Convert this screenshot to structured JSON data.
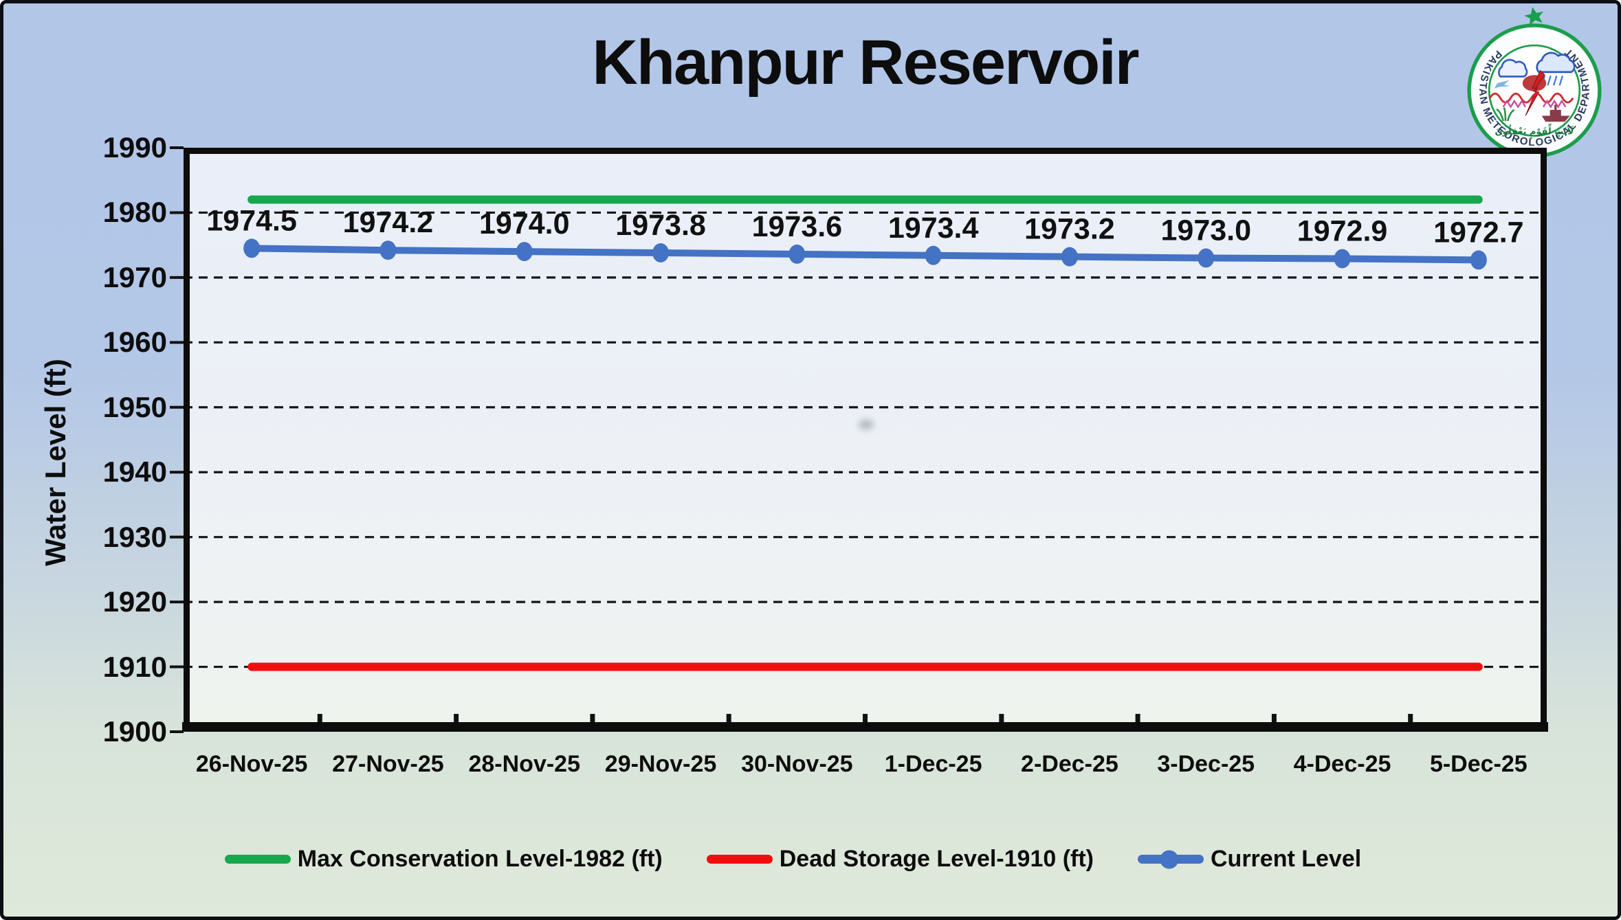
{
  "title": "Khanpur Reservoir",
  "logo": {
    "organization": "Pakistan Meteorological Department",
    "ring_text": "PAKISTAN METEOROLOGICAL DEPARTMENT",
    "arabic_text": "لَآيَٰتٍ لِّقَوْمٍ يَعْقِلُونَ"
  },
  "y_axis": {
    "label": "Water Level (ft)",
    "ticks": [
      "1990",
      "1980",
      "1970",
      "1960",
      "1950",
      "1940",
      "1930",
      "1920",
      "1910",
      "1900"
    ]
  },
  "chart_data": {
    "type": "line",
    "title": "Khanpur Reservoir",
    "ylabel": "Water Level (ft)",
    "ylim": [
      1900,
      1990
    ],
    "y_tick_step": 10,
    "grid": "horizontal-dashed",
    "legend_position": "bottom",
    "categories": [
      "26-Nov-25",
      "27-Nov-25",
      "28-Nov-25",
      "29-Nov-25",
      "30-Nov-25",
      "1-Dec-25",
      "2-Dec-25",
      "3-Dec-25",
      "4-Dec-25",
      "5-Dec-25"
    ],
    "series": [
      {
        "name": "Max Conservation Level-1982 (ft)",
        "color": "#17a74e",
        "markers": false,
        "values": [
          1982,
          1982,
          1982,
          1982,
          1982,
          1982,
          1982,
          1982,
          1982,
          1982
        ]
      },
      {
        "name": "Dead Storage Level-1910 (ft)",
        "color": "#f20e0e",
        "markers": false,
        "values": [
          1910,
          1910,
          1910,
          1910,
          1910,
          1910,
          1910,
          1910,
          1910,
          1910
        ]
      },
      {
        "name": "Current Level",
        "color": "#4472c4",
        "markers": true,
        "values": [
          1974.5,
          1974.2,
          1974.0,
          1973.8,
          1973.6,
          1973.4,
          1973.2,
          1973.0,
          1972.9,
          1972.7
        ],
        "labels": [
          "1974.5",
          "1974.2",
          "1974.0",
          "1973.8",
          "1973.6",
          "1973.4",
          "1973.2",
          "1973.0",
          "1972.9",
          "1972.7"
        ]
      }
    ]
  }
}
